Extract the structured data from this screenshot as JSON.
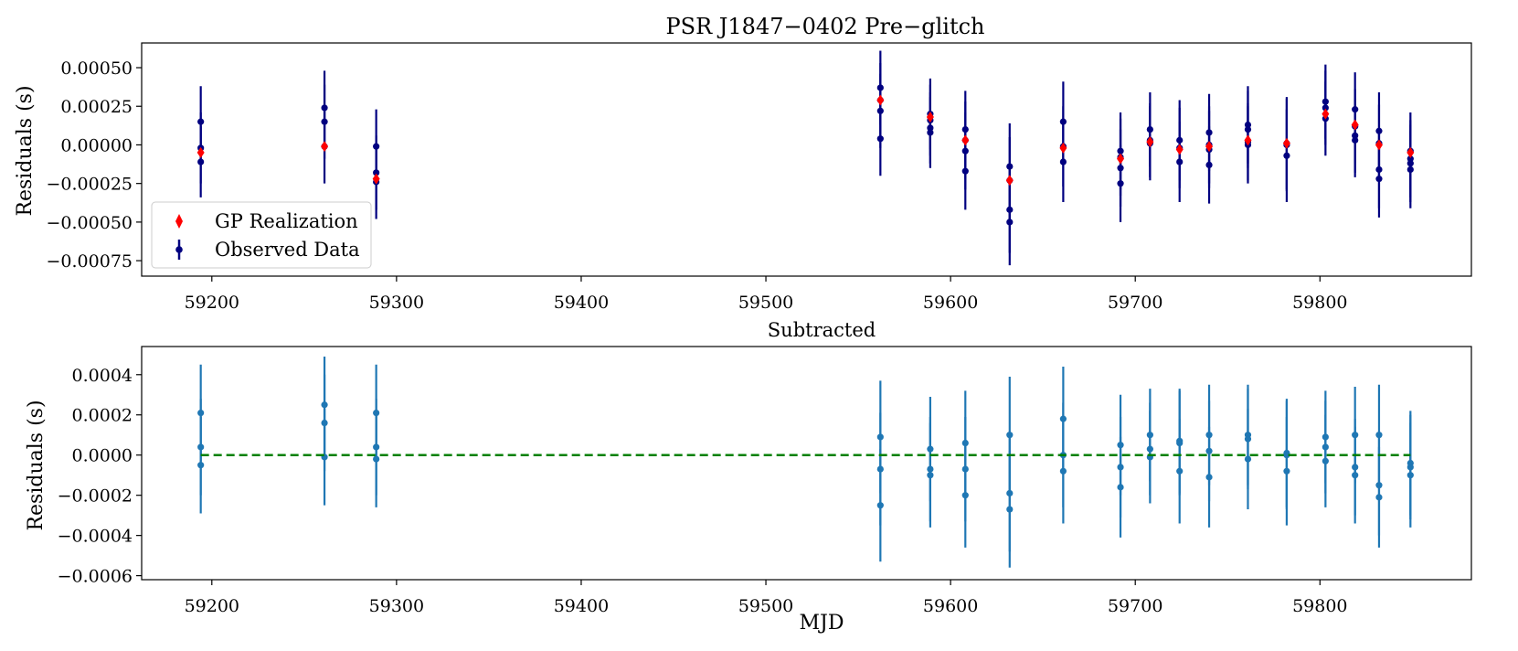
{
  "chart_data": [
    {
      "type": "scatter",
      "title": "PSR J1847−0402 Pre−glitch",
      "xlabel": "",
      "ylabel": "Residuals (s)",
      "xlim": [
        59162,
        59882
      ],
      "ylim": [
        -0.00085,
        0.00066
      ],
      "xticks": [
        59200,
        59300,
        59400,
        59500,
        59600,
        59700,
        59800
      ],
      "yticks": [
        0.0005,
        0.00025,
        0.0,
        -0.00025,
        -0.0005,
        -0.00075
      ],
      "ytick_labels": [
        "0.00050",
        "0.00025",
        "0.00000",
        "−0.00025",
        "−0.00050",
        "−0.00075"
      ],
      "legend": {
        "placement": "lower-left",
        "entries": [
          {
            "label": "GP Realization",
            "color": "#ff0000",
            "marker": "diamond"
          },
          {
            "label": "Observed Data",
            "color": "#000080",
            "marker": "errorbar"
          }
        ]
      },
      "series": [
        {
          "name": "Observed Data",
          "color": "#000080",
          "marker": "errorbar",
          "groups": [
            {
              "x": 59194,
              "y": [
                0.00015,
                -2e-05,
                -0.00011
              ],
              "err": 0.00023
            },
            {
              "x": 59261,
              "y": [
                0.00024,
                0.00015,
                -1e-05
              ],
              "err": 0.00024
            },
            {
              "x": 59289,
              "y": [
                -1e-05,
                -0.00018,
                -0.00024
              ],
              "err": 0.00024
            },
            {
              "x": 59562,
              "y": [
                0.00037,
                0.00029,
                0.00022,
                4e-05
              ],
              "err": 0.00024
            },
            {
              "x": 59589,
              "y": [
                0.0002,
                0.00016,
                0.00011,
                8e-05
              ],
              "err": 0.00023
            },
            {
              "x": 59608,
              "y": [
                0.0001,
                3e-05,
                -4e-05,
                -0.00017
              ],
              "err": 0.00025
            },
            {
              "x": 59632,
              "y": [
                -0.00014,
                -0.00023,
                -0.00042,
                -0.0005
              ],
              "err": 0.00028
            },
            {
              "x": 59661,
              "y": [
                0.00015,
                -1e-05,
                -0.00011
              ],
              "err": 0.00026
            },
            {
              "x": 59692,
              "y": [
                -4e-05,
                -8e-05,
                -0.00015,
                -0.00025
              ],
              "err": 0.00025
            },
            {
              "x": 59708,
              "y": [
                0.0001,
                3e-05,
                1e-05
              ],
              "err": 0.00024
            },
            {
              "x": 59724,
              "y": [
                3e-05,
                -2e-05,
                -0.00011
              ],
              "err": 0.00026
            },
            {
              "x": 59740,
              "y": [
                8e-05,
                0.0,
                -3e-05,
                -0.00013
              ],
              "err": 0.00025
            },
            {
              "x": 59761,
              "y": [
                0.00013,
                0.0001,
                2e-05,
                0.0
              ],
              "err": 0.00025
            },
            {
              "x": 59782,
              "y": [
                1e-05,
                0.0,
                -7e-05
              ],
              "err": 0.0003
            },
            {
              "x": 59803,
              "y": [
                0.00028,
                0.00024,
                0.00017
              ],
              "err": 0.00024
            },
            {
              "x": 59819,
              "y": [
                0.00023,
                0.00012,
                6e-05,
                3e-05
              ],
              "err": 0.00024
            },
            {
              "x": 59832,
              "y": [
                9e-05,
                1e-05,
                -0.00016,
                -0.00022
              ],
              "err": 0.00025
            },
            {
              "x": 59849,
              "y": [
                -4e-05,
                -9e-05,
                -0.00012,
                -0.00016
              ],
              "err": 0.00025
            }
          ]
        },
        {
          "name": "GP Realization",
          "color": "#ff0000",
          "marker": "diamond",
          "points": [
            [
              59194,
              -5e-05
            ],
            [
              59261,
              -1e-05
            ],
            [
              59289,
              -0.00022
            ],
            [
              59562,
              0.00029
            ],
            [
              59589,
              0.00018
            ],
            [
              59608,
              3e-05
            ],
            [
              59632,
              -0.00023
            ],
            [
              59661,
              -2e-05
            ],
            [
              59692,
              -9e-05
            ],
            [
              59708,
              2e-05
            ],
            [
              59724,
              -3e-05
            ],
            [
              59740,
              -1e-05
            ],
            [
              59761,
              3e-05
            ],
            [
              59782,
              1e-05
            ],
            [
              59803,
              0.0002
            ],
            [
              59819,
              0.00013
            ],
            [
              59832,
              0.0
            ],
            [
              59849,
              -5e-05
            ]
          ]
        }
      ]
    },
    {
      "type": "scatter",
      "title": "Subtracted",
      "xlabel": "MJD",
      "ylabel": "Residuals (s)",
      "xlim": [
        59162,
        59882
      ],
      "ylim": [
        -0.00062,
        0.00054
      ],
      "xticks": [
        59200,
        59300,
        59400,
        59500,
        59600,
        59700,
        59800
      ],
      "yticks": [
        0.0004,
        0.0002,
        0.0,
        -0.0002,
        -0.0004,
        -0.0006
      ],
      "ytick_labels": [
        "0.0004",
        "0.0002",
        "0.0000",
        "−0.0002",
        "−0.0004",
        "−0.0006"
      ],
      "reference_line": {
        "y": 0.0,
        "x_from": 59194,
        "x_to": 59849,
        "color": "#008000",
        "style": "dashed"
      },
      "series": [
        {
          "color": "#1f77b4",
          "marker": "errorbar",
          "groups": [
            {
              "x": 59194,
              "y": [
                0.00021,
                4e-05,
                -5e-05
              ],
              "err": 0.00024
            },
            {
              "x": 59261,
              "y": [
                0.00025,
                0.00016,
                -1e-05
              ],
              "err": 0.00024
            },
            {
              "x": 59289,
              "y": [
                0.00021,
                4e-05,
                -2e-05
              ],
              "err": 0.00024
            },
            {
              "x": 59562,
              "y": [
                9e-05,
                -7e-05,
                -0.00025
              ],
              "err": 0.00028
            },
            {
              "x": 59589,
              "y": [
                3e-05,
                -7e-05,
                -0.0001
              ],
              "err": 0.00026
            },
            {
              "x": 59608,
              "y": [
                6e-05,
                -7e-05,
                -0.0002
              ],
              "err": 0.00026
            },
            {
              "x": 59632,
              "y": [
                0.0001,
                -0.00019,
                -0.00027
              ],
              "err": 0.00029
            },
            {
              "x": 59661,
              "y": [
                0.00018,
                0.0,
                -8e-05
              ],
              "err": 0.00026
            },
            {
              "x": 59692,
              "y": [
                5e-05,
                -6e-05,
                -0.00016
              ],
              "err": 0.00025
            },
            {
              "x": 59708,
              "y": [
                0.0001,
                3e-05,
                -1e-05
              ],
              "err": 0.00023
            },
            {
              "x": 59724,
              "y": [
                7e-05,
                6e-05,
                -8e-05
              ],
              "err": 0.00026
            },
            {
              "x": 59740,
              "y": [
                0.0001,
                2e-05,
                -0.00011
              ],
              "err": 0.00025
            },
            {
              "x": 59761,
              "y": [
                0.0001,
                8e-05,
                -2e-05
              ],
              "err": 0.00025
            },
            {
              "x": 59782,
              "y": [
                1e-05,
                0.0,
                -8e-05
              ],
              "err": 0.00027
            },
            {
              "x": 59803,
              "y": [
                9e-05,
                4e-05,
                -3e-05
              ],
              "err": 0.00023
            },
            {
              "x": 59819,
              "y": [
                0.0001,
                -6e-05,
                -0.0001
              ],
              "err": 0.00024
            },
            {
              "x": 59832,
              "y": [
                0.0001,
                -0.00015,
                -0.00021
              ],
              "err": 0.00025
            },
            {
              "x": 59849,
              "y": [
                -4e-05,
                -6e-05,
                -0.0001
              ],
              "err": 0.00026
            }
          ]
        }
      ]
    }
  ]
}
